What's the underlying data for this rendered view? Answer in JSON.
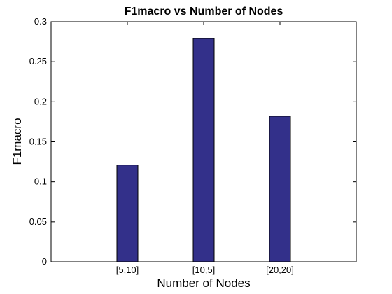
{
  "chart_data": {
    "type": "bar",
    "title": "F1macro vs Number of Nodes",
    "xlabel": "Number of Nodes",
    "ylabel": "F1macro",
    "categories": [
      "[5,10]",
      "[10,5]",
      "[20,20]"
    ],
    "values": [
      0.121,
      0.279,
      0.182
    ],
    "ylim": [
      0,
      0.3
    ],
    "yticks": [
      "0",
      "0.05",
      "0.1",
      "0.15",
      "0.2",
      "0.25",
      "0.3"
    ],
    "grid": false,
    "bar_color": "#33308a"
  }
}
